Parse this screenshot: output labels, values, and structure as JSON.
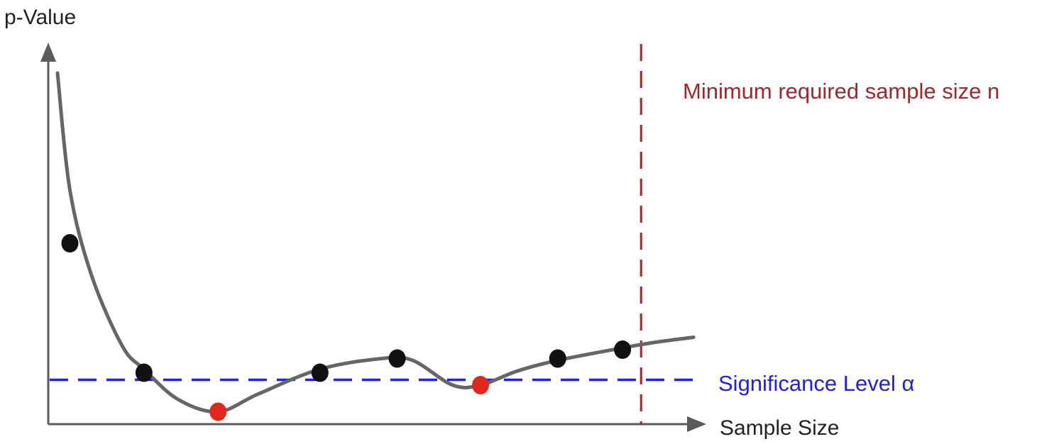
{
  "chart_data": {
    "type": "line",
    "title": "",
    "ylabel": "p-Value",
    "xlabel": "Sample Size",
    "xlim": [
      0,
      10
    ],
    "ylim": [
      0,
      10
    ],
    "grid": false,
    "ticks": false,
    "series": [
      {
        "curve": [
          [
            0.15,
            9.9
          ],
          [
            0.35,
            6.6
          ],
          [
            0.7,
            4.2
          ],
          [
            1.2,
            2.2
          ],
          [
            1.55,
            1.55
          ],
          [
            2.1,
            0.7
          ],
          [
            2.75,
            0.35
          ],
          [
            3.4,
            0.85
          ],
          [
            4.4,
            1.55
          ],
          [
            5.4,
            1.85
          ],
          [
            5.9,
            1.8
          ],
          [
            6.55,
            1.1
          ],
          [
            7.0,
            1.1
          ],
          [
            7.6,
            1.5
          ],
          [
            8.25,
            1.8
          ],
          [
            9.3,
            2.15
          ],
          [
            9.8,
            2.3
          ],
          [
            10.45,
            2.45
          ]
        ],
        "points": [
          {
            "x": 0.35,
            "y": 5.1,
            "color": "#111111"
          },
          {
            "x": 1.55,
            "y": 1.45,
            "color": "#111111"
          },
          {
            "x": 2.75,
            "y": 0.35,
            "color": "#e0281c"
          },
          {
            "x": 4.4,
            "y": 1.45,
            "color": "#111111"
          },
          {
            "x": 5.65,
            "y": 1.85,
            "color": "#111111"
          },
          {
            "x": 7.0,
            "y": 1.1,
            "color": "#e0281c"
          },
          {
            "x": 8.25,
            "y": 1.85,
            "color": "#111111"
          },
          {
            "x": 9.3,
            "y": 2.1,
            "color": "#111111"
          }
        ]
      }
    ],
    "significance_level": {
      "label": "Significance Level α",
      "y": 1.25,
      "color": "#2020dd",
      "style": "dashed"
    },
    "min_sample_size": {
      "label": "Minimum required sample size n",
      "x": 9.6,
      "color": "#a5262a",
      "style": "dashed"
    },
    "colors": {
      "curve": "#666666",
      "axis": "#5a5a5a"
    }
  }
}
